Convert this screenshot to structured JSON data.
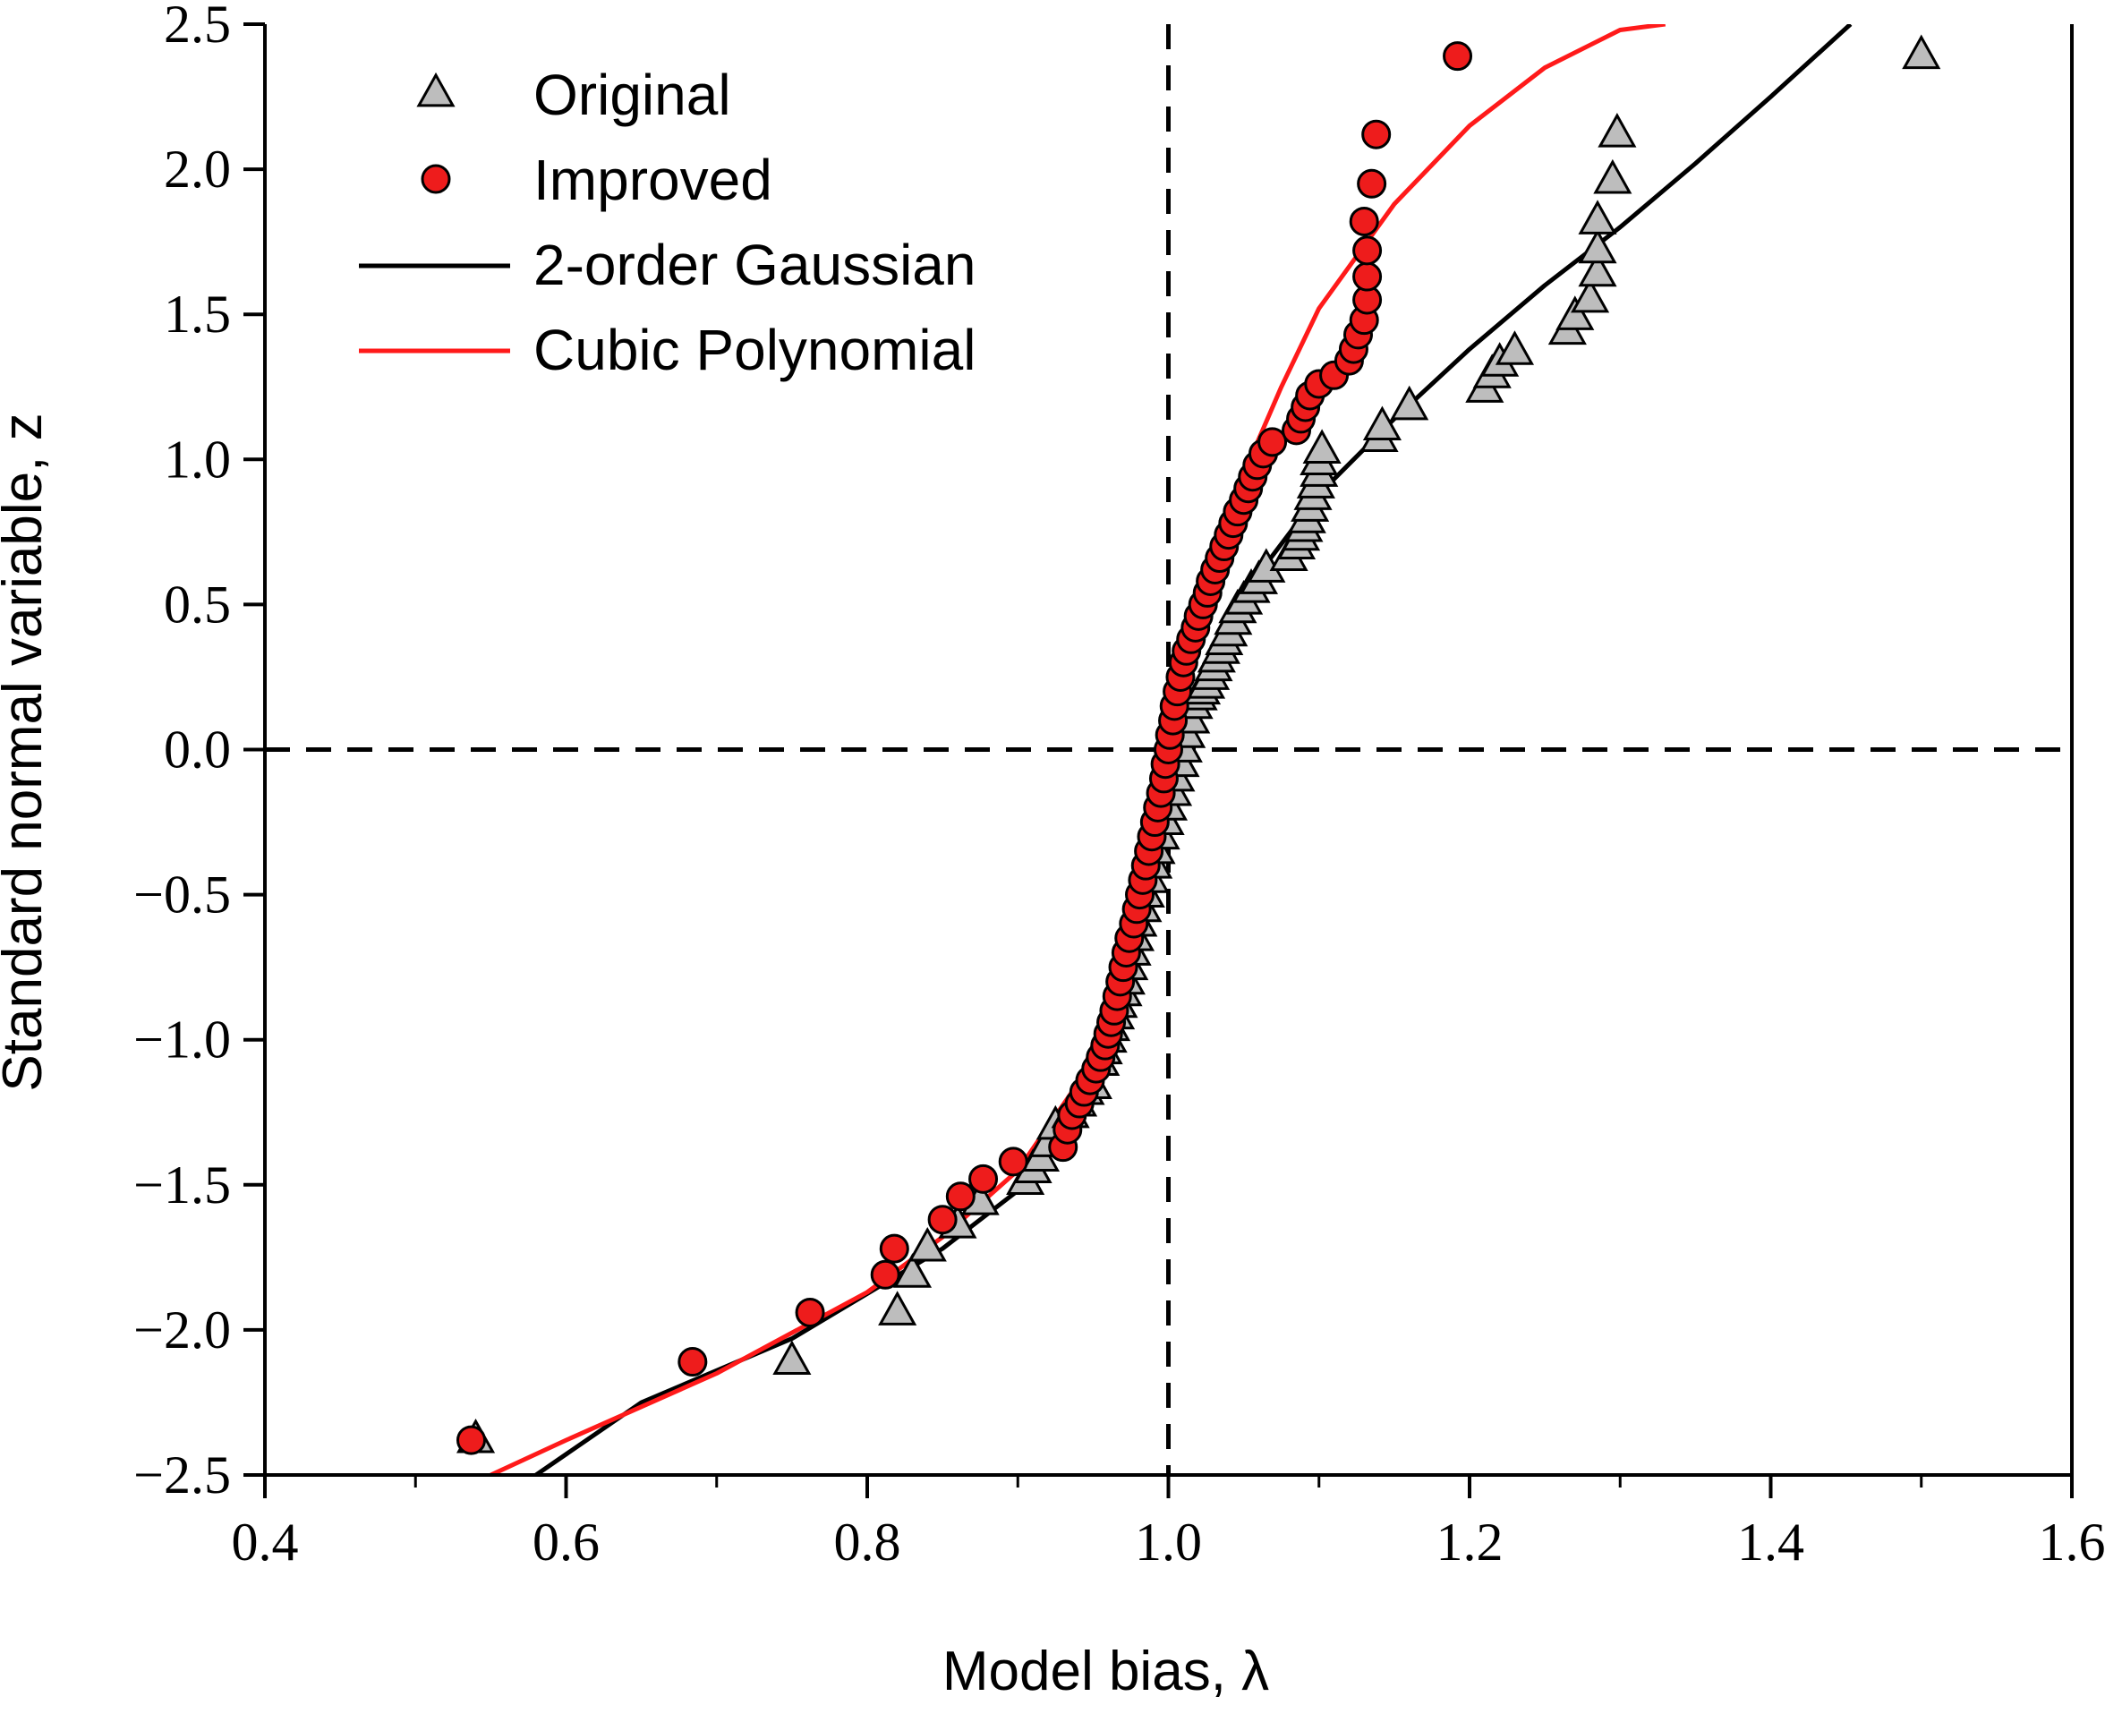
{
  "chart_data": {
    "type": "scatter",
    "xlabel": "Model bias, λ",
    "ylabel": "Standard normal variable, z",
    "xlim": [
      0.4,
      1.6
    ],
    "ylim": [
      -2.5,
      2.5
    ],
    "x_ticks": [
      0.4,
      0.6,
      0.8,
      1.0,
      1.2,
      1.4,
      1.6
    ],
    "x_tick_labels": [
      "0.4",
      "0.6",
      "0.8",
      "1.0",
      "1.2",
      "1.4",
      "1.6"
    ],
    "y_ticks": [
      -2.5,
      -2.0,
      -1.5,
      -1.0,
      -0.5,
      0.0,
      0.5,
      1.0,
      1.5,
      2.0,
      2.5
    ],
    "y_tick_labels": [
      "−2.5",
      "−2.0",
      "−1.5",
      "−1.0",
      "−0.5",
      "0.0",
      "0.5",
      "1.0",
      "1.5",
      "2.0",
      "2.5"
    ],
    "reference_lines": {
      "x": 1.0,
      "y": 0.0,
      "style": "dashed"
    },
    "grid": false,
    "legend_position": "top-left",
    "series": [
      {
        "name": "Original",
        "kind": "scatter",
        "marker": "triangle",
        "color": "#bdbdbd",
        "points": [
          [
            0.54,
            -2.38
          ],
          [
            0.75,
            -2.11
          ],
          [
            0.82,
            -1.94
          ],
          [
            0.83,
            -1.81
          ],
          [
            0.84,
            -1.72
          ],
          [
            0.86,
            -1.64
          ],
          [
            0.875,
            -1.56
          ],
          [
            0.905,
            -1.49
          ],
          [
            0.91,
            -1.45
          ],
          [
            0.915,
            -1.41
          ],
          [
            0.92,
            -1.36
          ],
          [
            0.925,
            -1.3
          ],
          [
            0.935,
            -1.26
          ],
          [
            0.94,
            -1.22
          ],
          [
            0.945,
            -1.18
          ],
          [
            0.95,
            -1.16
          ],
          [
            0.955,
            -1.08
          ],
          [
            0.957,
            -1.04
          ],
          [
            0.96,
            -1.0
          ],
          [
            0.962,
            -0.96
          ],
          [
            0.965,
            -0.92
          ],
          [
            0.967,
            -0.88
          ],
          [
            0.97,
            -0.84
          ],
          [
            0.972,
            -0.8
          ],
          [
            0.974,
            -0.75
          ],
          [
            0.976,
            -0.7
          ],
          [
            0.978,
            -0.65
          ],
          [
            0.98,
            -0.6
          ],
          [
            0.983,
            -0.55
          ],
          [
            0.985,
            -0.5
          ],
          [
            0.988,
            -0.45
          ],
          [
            0.99,
            -0.4
          ],
          [
            0.992,
            -0.35
          ],
          [
            0.995,
            -0.3
          ],
          [
            0.998,
            -0.25
          ],
          [
            1.0,
            -0.2
          ],
          [
            1.003,
            -0.15
          ],
          [
            1.005,
            -0.1
          ],
          [
            1.008,
            -0.05
          ],
          [
            1.01,
            0.0
          ],
          [
            1.012,
            0.05
          ],
          [
            1.015,
            0.1
          ],
          [
            1.017,
            0.15
          ],
          [
            1.02,
            0.18
          ],
          [
            1.022,
            0.2
          ],
          [
            1.025,
            0.22
          ],
          [
            1.028,
            0.25
          ],
          [
            1.03,
            0.28
          ],
          [
            1.032,
            0.31
          ],
          [
            1.035,
            0.34
          ],
          [
            1.037,
            0.37
          ],
          [
            1.04,
            0.4
          ],
          [
            1.043,
            0.44
          ],
          [
            1.046,
            0.48
          ],
          [
            1.05,
            0.51
          ],
          [
            1.055,
            0.55
          ],
          [
            1.06,
            0.58
          ],
          [
            1.065,
            0.62
          ],
          [
            1.08,
            0.66
          ],
          [
            1.085,
            0.7
          ],
          [
            1.088,
            0.73
          ],
          [
            1.09,
            0.76
          ],
          [
            1.092,
            0.79
          ],
          [
            1.094,
            0.83
          ],
          [
            1.096,
            0.87
          ],
          [
            1.098,
            0.91
          ],
          [
            1.1,
            0.95
          ],
          [
            1.1,
            0.99
          ],
          [
            1.102,
            1.03
          ],
          [
            1.14,
            1.07
          ],
          [
            1.142,
            1.11
          ],
          [
            1.16,
            1.18
          ],
          [
            1.21,
            1.24
          ],
          [
            1.215,
            1.29
          ],
          [
            1.22,
            1.33
          ],
          [
            1.23,
            1.37
          ],
          [
            1.265,
            1.44
          ],
          [
            1.27,
            1.49
          ],
          [
            1.28,
            1.55
          ],
          [
            1.285,
            1.64
          ],
          [
            1.285,
            1.72
          ],
          [
            1.285,
            1.82
          ],
          [
            1.295,
            1.96
          ],
          [
            1.298,
            2.12
          ],
          [
            1.5,
            2.39
          ]
        ]
      },
      {
        "name": "Improved",
        "kind": "scatter",
        "marker": "circle",
        "color": "#ee1c1c",
        "points": [
          [
            0.537,
            -2.38
          ],
          [
            0.684,
            -2.11
          ],
          [
            0.762,
            -1.94
          ],
          [
            0.812,
            -1.81
          ],
          [
            0.818,
            -1.72
          ],
          [
            0.85,
            -1.62
          ],
          [
            0.862,
            -1.54
          ],
          [
            0.877,
            -1.48
          ],
          [
            0.897,
            -1.42
          ],
          [
            0.93,
            -1.37
          ],
          [
            0.933,
            -1.31
          ],
          [
            0.936,
            -1.26
          ],
          [
            0.941,
            -1.22
          ],
          [
            0.944,
            -1.18
          ],
          [
            0.948,
            -1.14
          ],
          [
            0.952,
            -1.1
          ],
          [
            0.955,
            -1.06
          ],
          [
            0.958,
            -1.02
          ],
          [
            0.96,
            -0.98
          ],
          [
            0.962,
            -0.94
          ],
          [
            0.964,
            -0.9
          ],
          [
            0.966,
            -0.85
          ],
          [
            0.968,
            -0.8
          ],
          [
            0.97,
            -0.75
          ],
          [
            0.972,
            -0.7
          ],
          [
            0.974,
            -0.65
          ],
          [
            0.977,
            -0.6
          ],
          [
            0.979,
            -0.55
          ],
          [
            0.981,
            -0.5
          ],
          [
            0.983,
            -0.45
          ],
          [
            0.985,
            -0.4
          ],
          [
            0.987,
            -0.35
          ],
          [
            0.989,
            -0.3
          ],
          [
            0.991,
            -0.25
          ],
          [
            0.993,
            -0.2
          ],
          [
            0.995,
            -0.15
          ],
          [
            0.997,
            -0.1
          ],
          [
            0.998,
            -0.05
          ],
          [
            1.0,
            0.0
          ],
          [
            1.001,
            0.05
          ],
          [
            1.003,
            0.1
          ],
          [
            1.004,
            0.15
          ],
          [
            1.006,
            0.2
          ],
          [
            1.008,
            0.25
          ],
          [
            1.01,
            0.3
          ],
          [
            1.012,
            0.34
          ],
          [
            1.015,
            0.38
          ],
          [
            1.018,
            0.42
          ],
          [
            1.02,
            0.46
          ],
          [
            1.023,
            0.5
          ],
          [
            1.026,
            0.54
          ],
          [
            1.028,
            0.58
          ],
          [
            1.031,
            0.62
          ],
          [
            1.034,
            0.66
          ],
          [
            1.037,
            0.7
          ],
          [
            1.04,
            0.74
          ],
          [
            1.043,
            0.78
          ],
          [
            1.046,
            0.82
          ],
          [
            1.05,
            0.86
          ],
          [
            1.053,
            0.9
          ],
          [
            1.056,
            0.94
          ],
          [
            1.059,
            0.98
          ],
          [
            1.063,
            1.02
          ],
          [
            1.069,
            1.06
          ],
          [
            1.085,
            1.1
          ],
          [
            1.088,
            1.14
          ],
          [
            1.091,
            1.18
          ],
          [
            1.094,
            1.22
          ],
          [
            1.1,
            1.26
          ],
          [
            1.11,
            1.29
          ],
          [
            1.12,
            1.34
          ],
          [
            1.123,
            1.38
          ],
          [
            1.126,
            1.43
          ],
          [
            1.13,
            1.48
          ],
          [
            1.132,
            1.55
          ],
          [
            1.132,
            1.63
          ],
          [
            1.132,
            1.72
          ],
          [
            1.13,
            1.82
          ],
          [
            1.135,
            1.95
          ],
          [
            1.138,
            2.12
          ],
          [
            1.192,
            2.39
          ]
        ]
      },
      {
        "name": "2-order Gaussian",
        "kind": "line",
        "color": "#000000",
        "points": [
          [
            0.58,
            -2.5
          ],
          [
            0.65,
            -2.25
          ],
          [
            0.75,
            -2.03
          ],
          [
            0.85,
            -1.72
          ],
          [
            0.9,
            -1.52
          ],
          [
            0.94,
            -1.2
          ],
          [
            0.965,
            -0.85
          ],
          [
            0.98,
            -0.55
          ],
          [
            0.99,
            -0.32
          ],
          [
            1.0,
            -0.12
          ],
          [
            1.01,
            0.05
          ],
          [
            1.02,
            0.2
          ],
          [
            1.04,
            0.42
          ],
          [
            1.065,
            0.64
          ],
          [
            1.1,
            0.88
          ],
          [
            1.15,
            1.14
          ],
          [
            1.2,
            1.38
          ],
          [
            1.25,
            1.6
          ],
          [
            1.3,
            1.8
          ],
          [
            1.35,
            2.02
          ],
          [
            1.4,
            2.25
          ],
          [
            1.453,
            2.5
          ]
        ]
      },
      {
        "name": "Cubic Polynomial",
        "kind": "line",
        "color": "#ff1a1a",
        "points": [
          [
            0.55,
            -2.5
          ],
          [
            0.6,
            -2.38
          ],
          [
            0.7,
            -2.15
          ],
          [
            0.8,
            -1.87
          ],
          [
            0.85,
            -1.68
          ],
          [
            0.9,
            -1.45
          ],
          [
            0.94,
            -1.15
          ],
          [
            0.965,
            -0.82
          ],
          [
            0.985,
            -0.45
          ],
          [
            1.0,
            -0.12
          ],
          [
            1.01,
            0.18
          ],
          [
            1.02,
            0.42
          ],
          [
            1.035,
            0.7
          ],
          [
            1.05,
            0.95
          ],
          [
            1.075,
            1.25
          ],
          [
            1.1,
            1.52
          ],
          [
            1.15,
            1.88
          ],
          [
            1.2,
            2.15
          ],
          [
            1.25,
            2.35
          ],
          [
            1.3,
            2.48
          ],
          [
            1.33,
            2.5
          ]
        ]
      }
    ]
  }
}
